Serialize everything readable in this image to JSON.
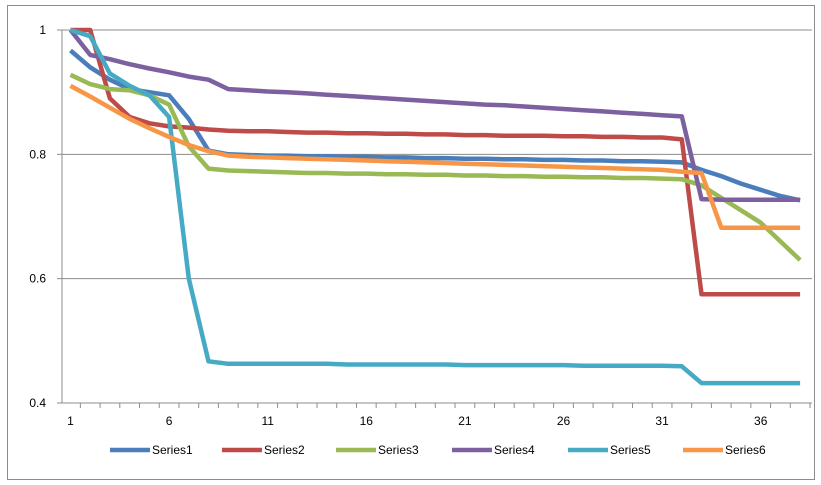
{
  "chart_data": {
    "type": "line",
    "title": "",
    "xlabel": "",
    "ylabel": "",
    "x": [
      1,
      2,
      3,
      4,
      5,
      6,
      7,
      8,
      9,
      10,
      11,
      12,
      13,
      14,
      15,
      16,
      17,
      18,
      19,
      20,
      21,
      22,
      23,
      24,
      25,
      26,
      27,
      28,
      29,
      30,
      31,
      32,
      33,
      34,
      35,
      36,
      37,
      38
    ],
    "x_tick_labels": [
      "1",
      "6",
      "11",
      "16",
      "21",
      "26",
      "31",
      "36"
    ],
    "y_tick_labels": [
      "0.4",
      "0.6",
      "0.8",
      "1"
    ],
    "ylim": [
      0.4,
      1.0
    ],
    "grid": "horizontal",
    "legend_position": "bottom",
    "series": [
      {
        "name": "Series1",
        "color": "#4a7ebb",
        "values": [
          0.967,
          0.94,
          0.92,
          0.905,
          0.9,
          0.895,
          0.857,
          0.806,
          0.8,
          0.799,
          0.798,
          0.798,
          0.797,
          0.797,
          0.796,
          0.796,
          0.795,
          0.795,
          0.794,
          0.794,
          0.793,
          0.793,
          0.792,
          0.792,
          0.791,
          0.791,
          0.79,
          0.79,
          0.789,
          0.789,
          0.788,
          0.787,
          0.775,
          0.765,
          0.753,
          0.743,
          0.733,
          0.726
        ]
      },
      {
        "name": "Series2",
        "color": "#be4b48",
        "values": [
          1.0,
          1.0,
          0.89,
          0.86,
          0.85,
          0.845,
          0.843,
          0.84,
          0.838,
          0.837,
          0.837,
          0.836,
          0.835,
          0.835,
          0.834,
          0.834,
          0.833,
          0.833,
          0.832,
          0.832,
          0.831,
          0.831,
          0.83,
          0.83,
          0.83,
          0.829,
          0.829,
          0.828,
          0.828,
          0.827,
          0.827,
          0.824,
          0.575,
          0.575,
          0.575,
          0.575,
          0.575,
          0.575
        ]
      },
      {
        "name": "Series3",
        "color": "#98b954",
        "values": [
          0.928,
          0.913,
          0.905,
          0.903,
          0.895,
          0.88,
          0.813,
          0.777,
          0.774,
          0.773,
          0.772,
          0.771,
          0.77,
          0.77,
          0.769,
          0.769,
          0.768,
          0.768,
          0.767,
          0.767,
          0.766,
          0.766,
          0.765,
          0.765,
          0.764,
          0.764,
          0.763,
          0.763,
          0.762,
          0.762,
          0.761,
          0.76,
          0.75,
          0.73,
          0.71,
          0.69,
          0.66,
          0.63
        ]
      },
      {
        "name": "Series4",
        "color": "#7d60a0",
        "values": [
          1.0,
          0.96,
          0.953,
          0.945,
          0.938,
          0.932,
          0.925,
          0.92,
          0.905,
          0.903,
          0.901,
          0.9,
          0.898,
          0.896,
          0.894,
          0.892,
          0.89,
          0.888,
          0.886,
          0.884,
          0.882,
          0.88,
          0.879,
          0.877,
          0.875,
          0.873,
          0.871,
          0.869,
          0.867,
          0.865,
          0.863,
          0.861,
          0.728,
          0.727,
          0.727,
          0.727,
          0.727,
          0.727
        ]
      },
      {
        "name": "Series5",
        "color": "#46aac5",
        "values": [
          1.0,
          0.99,
          0.93,
          0.91,
          0.895,
          0.86,
          0.6,
          0.467,
          0.463,
          0.463,
          0.463,
          0.463,
          0.463,
          0.463,
          0.462,
          0.462,
          0.462,
          0.462,
          0.462,
          0.462,
          0.461,
          0.461,
          0.461,
          0.461,
          0.461,
          0.461,
          0.46,
          0.46,
          0.46,
          0.46,
          0.46,
          0.459,
          0.432,
          0.432,
          0.432,
          0.432,
          0.432,
          0.432
        ]
      },
      {
        "name": "Series6",
        "color": "#f79646",
        "values": [
          0.91,
          0.893,
          0.875,
          0.857,
          0.842,
          0.828,
          0.815,
          0.805,
          0.798,
          0.796,
          0.795,
          0.794,
          0.793,
          0.792,
          0.791,
          0.79,
          0.789,
          0.788,
          0.787,
          0.786,
          0.785,
          0.784,
          0.783,
          0.782,
          0.781,
          0.78,
          0.779,
          0.778,
          0.777,
          0.776,
          0.775,
          0.772,
          0.77,
          0.682,
          0.682,
          0.682,
          0.682,
          0.682
        ]
      }
    ]
  }
}
